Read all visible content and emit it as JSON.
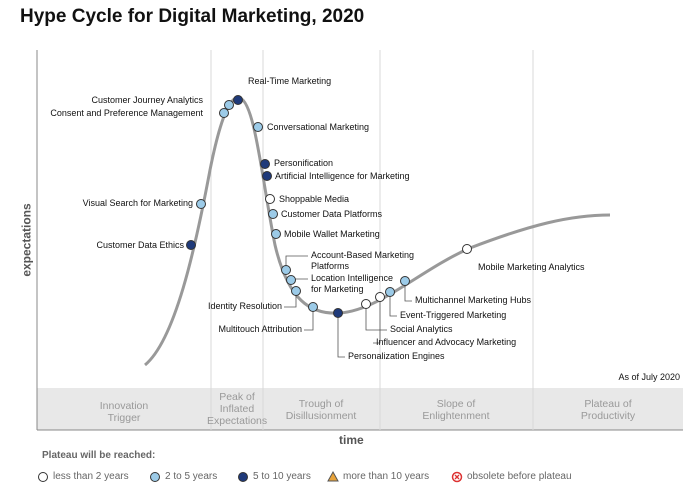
{
  "title": "Hype Cycle for Digital Marketing, 2020",
  "axes": {
    "y_label": "expectations",
    "x_label": "time"
  },
  "as_of": "As of July 2020",
  "phases": [
    "Innovation Trigger",
    "Peak of Inflated Expectations",
    "Trough of Disillusionment",
    "Slope of Enlightenment",
    "Plateau of Productivity"
  ],
  "legend": {
    "title": "Plateau will be reached:",
    "items": [
      "less than 2 years",
      "2 to 5 years",
      "5 to 10 years",
      "more than 10 years",
      "obsolete before plateau"
    ]
  },
  "technologies": [
    {
      "label": "Real-Time Marketing",
      "plateau": "5 to 10 years"
    },
    {
      "label": "Customer Journey Analytics",
      "plateau": "2 to 5 years"
    },
    {
      "label": "Consent and Preference Management",
      "plateau": "2 to 5 years"
    },
    {
      "label": "Conversational Marketing",
      "plateau": "2 to 5 years"
    },
    {
      "label": "Personification",
      "plateau": "5 to 10 years"
    },
    {
      "label": "Artificial Intelligence for Marketing",
      "plateau": "5 to 10 years"
    },
    {
      "label": "Shoppable Media",
      "plateau": "less than 2 years"
    },
    {
      "label": "Customer Data Platforms",
      "plateau": "2 to 5 years"
    },
    {
      "label": "Mobile Wallet Marketing",
      "plateau": "2 to 5 years"
    },
    {
      "label": "Account-Based Marketing Platforms",
      "plateau": "2 to 5 years"
    },
    {
      "label": "Location Intelligence for Marketing",
      "plateau": "2 to 5 years"
    },
    {
      "label": "Identity Resolution",
      "plateau": "2 to 5 years"
    },
    {
      "label": "Multitouch Attribution",
      "plateau": "2 to 5 years"
    },
    {
      "label": "Personalization Engines",
      "plateau": "5 to 10 years"
    },
    {
      "label": "Social Analytics",
      "plateau": "less than 2 years"
    },
    {
      "label": "Influencer and Advocacy Marketing",
      "plateau": "less than 2 years"
    },
    {
      "label": "Event-Triggered Marketing",
      "plateau": "2 to 5 years"
    },
    {
      "label": "Multichannel Marketing Hubs",
      "plateau": "2 to 5 years"
    },
    {
      "label": "Mobile Marketing Analytics",
      "plateau": "less than 2 years"
    },
    {
      "label": "Visual Search for Marketing",
      "plateau": "2 to 5 years"
    },
    {
      "label": "Customer Data Ethics",
      "plateau": "5 to 10 years"
    }
  ]
}
